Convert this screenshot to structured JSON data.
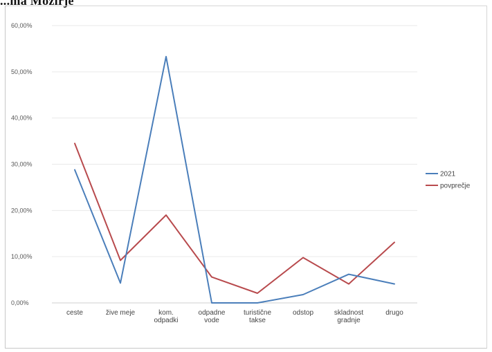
{
  "header": {
    "text": "...ma Mozirje"
  },
  "chart_data": {
    "type": "line",
    "title": "",
    "xlabel": "",
    "ylabel": "",
    "categories": [
      [
        "ceste"
      ],
      [
        "žive meje"
      ],
      [
        "kom.",
        "odpadki"
      ],
      [
        "odpadne",
        "vode"
      ],
      [
        "turistične",
        "takse"
      ],
      [
        "odstop"
      ],
      [
        "skladnost",
        "gradnje"
      ],
      [
        "drugo"
      ]
    ],
    "yticks": [
      "0,00%",
      "10,00%",
      "20,00%",
      "30,00%",
      "40,00%",
      "50,00%",
      "60,00%"
    ],
    "ylim": [
      0,
      60
    ],
    "grid": true,
    "legend_position": "right",
    "series": [
      {
        "name": "2021",
        "color": "#4a7eba",
        "values": [
          28.8,
          4.3,
          53.3,
          0.0,
          0.0,
          1.8,
          6.2,
          4.1
        ]
      },
      {
        "name": "povprečje",
        "color": "#b84a4d",
        "values": [
          34.5,
          9.2,
          19.0,
          5.6,
          2.1,
          9.8,
          4.1,
          13.1
        ]
      }
    ]
  }
}
